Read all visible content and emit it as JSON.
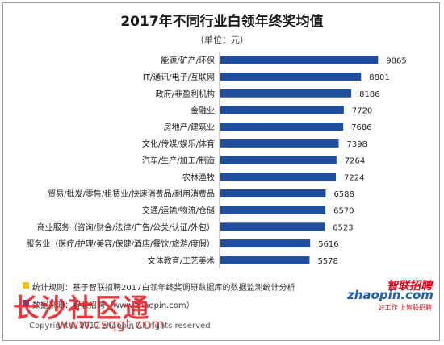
{
  "chart_data": {
    "type": "bar",
    "orientation": "horizontal",
    "title": "2017年不同行业白领年终奖均值",
    "subtitle": "（单位：元）",
    "categories": [
      "能源/矿产/环保",
      "IT/通讯/电子/互联网",
      "政府/非盈利机构",
      "金融业",
      "房地产/建筑业",
      "文化/传媒/娱乐/体育",
      "汽车/生产/加工/制造",
      "农林渔牧",
      "贸易/批发/零售/租赁业/快速消费品/耐用消费品",
      "交通/运输/物流/仓储",
      "商业服务（咨询/财会/法律/广告/公关/认证/外包）",
      "服务业（医疗/护理/美容/保健/酒店/餐饮/旅游/度假）",
      "文体教育/工艺美术"
    ],
    "values": [
      9865,
      8801,
      8186,
      7720,
      7686,
      7398,
      7264,
      7224,
      6588,
      6570,
      6523,
      5616,
      5578
    ],
    "xlim": [
      0,
      10000
    ],
    "bar_color": "#1f4e9e",
    "grid": false
  },
  "footer": {
    "stat_note": "统计规则：基于智联招聘2017白领年终奖调研数据库的数据监测统计分析",
    "source_note": "数据来源：智联招聘（www.zhaopin.com）",
    "copyright": "Copyright© 2017 zhaopin All rights reserved",
    "square_colors": [
      "#f5c400",
      "#2f5fb0"
    ]
  },
  "logo": {
    "cn": "智联招聘",
    "en": "zhaopin.com",
    "slogan": "好工作 上智联招聘"
  },
  "watermark": {
    "line1": "长沙社区通",
    "line2": "www.csqgt.com"
  }
}
